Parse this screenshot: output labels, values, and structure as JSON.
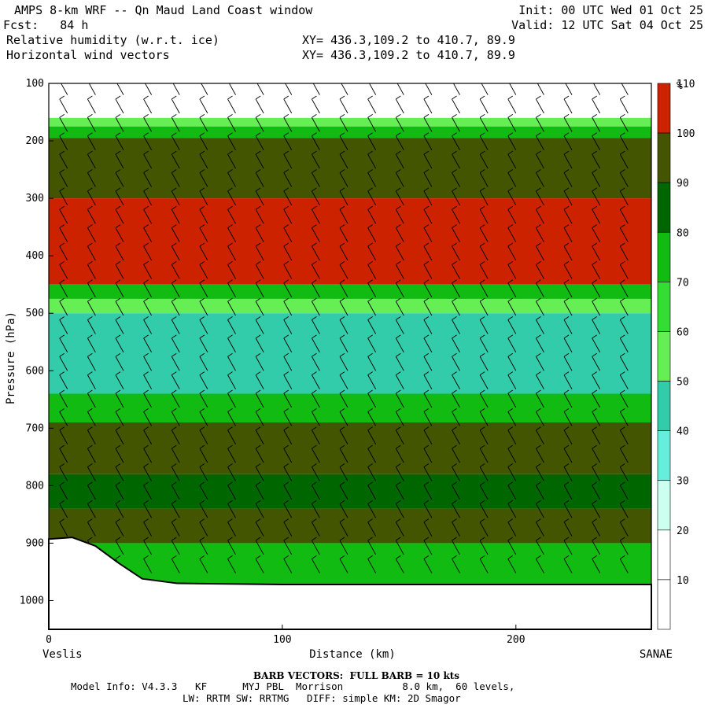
{
  "header": {
    "title": "AMPS 8-km WRF -- Qn Maud Land Coast window",
    "fcst": "Fcst:   84 h",
    "field1": "Relative humidity (w.r.t. ice)",
    "field2": "Horizontal wind vectors",
    "xy1": "XY= 436.3,109.2 to 410.7, 89.9",
    "xy2": "XY= 436.3,109.2 to 410.7, 89.9",
    "init": "Init: 00 UTC Wed 01 Oct 25",
    "valid": "Valid: 12 UTC Sat 04 Oct 25"
  },
  "footer": {
    "barb": "BARB VECTORS:  FULL BARB = 10 kts",
    "model": "Model Info: V4.3.3   KF      MYJ PBL  Morrison          8.0 km,  60 levels,",
    "physics": "LW: RRTM SW: RRTMG   DIFF: simple KM: 2D Smagor"
  },
  "chart_data": {
    "type": "cross-section-contour",
    "xlabel": "Distance (km)",
    "ylabel": "Pressure (hPa)",
    "x_ticks": [
      0,
      100,
      200
    ],
    "y_ticks": [
      100,
      200,
      300,
      400,
      500,
      600,
      700,
      800,
      900,
      1000
    ],
    "xlim": [
      0,
      258
    ],
    "ylim": [
      1050,
      100
    ],
    "y_reversed": true,
    "left_endpoint": "Veslis",
    "right_endpoint": "SANAE",
    "colorbar": {
      "unit": "%",
      "levels": [
        10,
        20,
        30,
        40,
        50,
        60,
        70,
        80,
        90,
        100,
        110
      ],
      "colors": [
        "#ffffff",
        "#ffffff",
        "#ccfff0",
        "#66eedd",
        "#33ccaa",
        "#66ee55",
        "#33dd33",
        "#11bb11",
        "#006600",
        "#445500",
        "#cc2200"
      ]
    },
    "terrain_surface_hPa": [
      [
        0,
        893
      ],
      [
        10,
        890
      ],
      [
        20,
        905
      ],
      [
        30,
        935
      ],
      [
        40,
        962
      ],
      [
        55,
        970
      ],
      [
        100,
        972
      ],
      [
        258,
        972
      ]
    ],
    "rh_layers": [
      {
        "from_hPa": 100,
        "to_hPa": 160,
        "rh": 15
      },
      {
        "from_hPa": 160,
        "to_hPa": 175,
        "rh": 55
      },
      {
        "from_hPa": 175,
        "to_hPa": 195,
        "rh": 75
      },
      {
        "from_hPa": 195,
        "to_hPa": 300,
        "rh": 95
      },
      {
        "from_hPa": 300,
        "to_hPa": 450,
        "rh": 105
      },
      {
        "from_hPa": 450,
        "to_hPa": 475,
        "rh": 80
      },
      {
        "from_hPa": 475,
        "to_hPa": 500,
        "rh": 60
      },
      {
        "from_hPa": 500,
        "to_hPa": 640,
        "rh": 45
      },
      {
        "from_hPa": 640,
        "to_hPa": 690,
        "rh": 75
      },
      {
        "from_hPa": 690,
        "to_hPa": 780,
        "rh": 100
      },
      {
        "from_hPa": 780,
        "to_hPa": 840,
        "rh": 85
      },
      {
        "from_hPa": 840,
        "to_hPa": 900,
        "rh": 95
      },
      {
        "from_hPa": 900,
        "to_hPa": 975,
        "rh": 75
      }
    ]
  }
}
